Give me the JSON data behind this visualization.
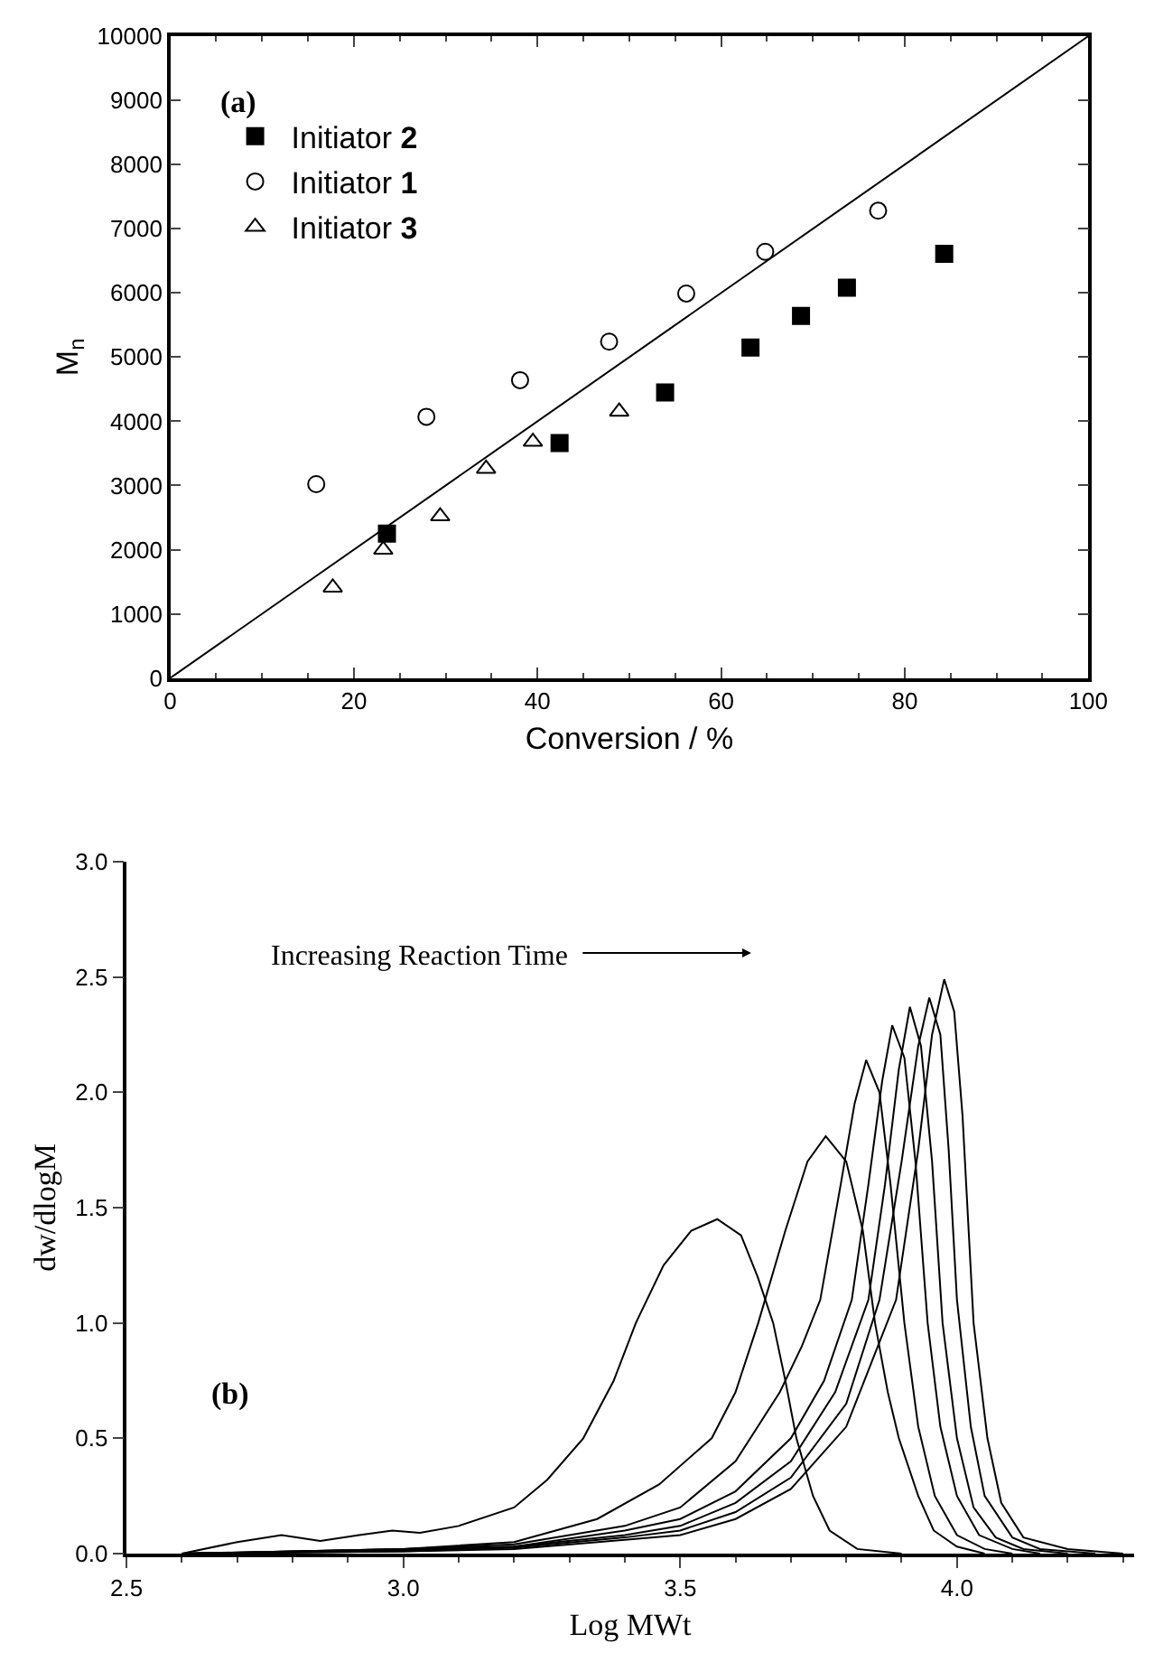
{
  "chart_data": [
    {
      "type": "scatter",
      "annotations": [
        "(a)"
      ],
      "xlabel": "Conversion / %",
      "ylabel": "M$_{n}$",
      "xlim": [
        0,
        100
      ],
      "xticks": [
        0,
        20,
        40,
        60,
        80,
        100
      ],
      "ylim": [
        0,
        10000
      ],
      "yticks": [
        0,
        1000,
        2000,
        3000,
        4000,
        5000,
        6000,
        7000,
        8000,
        9000,
        10000
      ],
      "legend": "top left",
      "series": [
        {
          "name": "Initiator 2",
          "color": "#000000",
          "marker": "square",
          "x": [
            23.6,
            42.4,
            53.9,
            63.2,
            68.7,
            73.7,
            84.3
          ],
          "values": [
            2250,
            3660,
            4450,
            5150,
            5640,
            6080,
            6610
          ]
        },
        {
          "name": "Initiator 1",
          "color": "#000000",
          "marker": "circle",
          "x": [
            15.9,
            27.9,
            38.1,
            47.8,
            56.2,
            64.8,
            77.1
          ],
          "values": [
            3020,
            4070,
            4640,
            5240,
            5990,
            6640,
            7280
          ]
        },
        {
          "name": "Initiator 3",
          "color": "#000000",
          "marker": "triangle",
          "x": [
            17.7,
            23.2,
            29.4,
            34.4,
            39.5,
            48.9
          ],
          "values": [
            1410,
            2000,
            2520,
            3260,
            3680,
            4150
          ]
        },
        {
          "type": "line",
          "color": "#000000",
          "marker": "none",
          "x": [
            0,
            100
          ],
          "values": [
            0,
            10000
          ]
        }
      ]
    },
    {
      "type": "line",
      "annotations": [
        "(b)",
        "Increasing Reaction Time"
      ],
      "xlabel": "Log MWt",
      "ylabel": "dw/dlogM",
      "xlim": [
        2.5,
        4.32
      ],
      "xticks": [
        2.5,
        {
          "value": 3,
          "label": "3.0"
        },
        3.5,
        {
          "value": 4,
          "label": "4.0"
        }
      ],
      "ylim": [
        0,
        3
      ],
      "yticks": [
        {
          "value": 0,
          "label": "0.0"
        },
        0.5,
        {
          "value": 1,
          "label": "1.0"
        },
        1.5,
        {
          "value": 2,
          "label": "2.0"
        },
        2.5,
        {
          "value": 3,
          "label": "3.0"
        }
      ],
      "marker": "none",
      "line_style": "solid",
      "series": [
        {
          "color": "#000000",
          "x": [
            2.6,
            2.7,
            2.78,
            2.85,
            2.92,
            2.98,
            3.03,
            3.1,
            3.2,
            3.26,
            3.325,
            3.38,
            3.42,
            3.47,
            3.52,
            3.567,
            3.61,
            3.64,
            3.668,
            3.69,
            3.71,
            3.74,
            3.77,
            3.82,
            3.9
          ],
          "values": [
            0,
            0.05,
            0.08,
            0.055,
            0.08,
            0.1,
            0.09,
            0.12,
            0.2,
            0.32,
            0.5,
            0.75,
            1.0,
            1.25,
            1.4,
            1.45,
            1.38,
            1.2,
            1.0,
            0.75,
            0.5,
            0.25,
            0.1,
            0.02,
            0
          ]
        },
        {
          "color": "#000000",
          "x": [
            2.6,
            2.8,
            3.0,
            3.2,
            3.35,
            3.462,
            3.557,
            3.6,
            3.641,
            3.69,
            3.73,
            3.763,
            3.8,
            3.83,
            3.852,
            3.875,
            3.895,
            3.93,
            3.958,
            4.0,
            4.05
          ],
          "values": [
            0,
            0.01,
            0.02,
            0.05,
            0.15,
            0.3,
            0.5,
            0.7,
            1.0,
            1.4,
            1.7,
            1.81,
            1.7,
            1.4,
            1.0,
            0.7,
            0.5,
            0.25,
            0.1,
            0.03,
            0
          ]
        },
        {
          "color": "#000000",
          "x": [
            2.6,
            3.0,
            3.2,
            3.4,
            3.5,
            3.6,
            3.68,
            3.72,
            3.753,
            3.79,
            3.815,
            3.836,
            3.86,
            3.88,
            3.905,
            3.93,
            3.96,
            4.0,
            4.05,
            4.1
          ],
          "values": [
            0,
            0.02,
            0.04,
            0.12,
            0.2,
            0.4,
            0.7,
            0.9,
            1.1,
            1.6,
            1.95,
            2.14,
            2.0,
            1.6,
            1.0,
            0.55,
            0.25,
            0.08,
            0.02,
            0
          ]
        },
        {
          "color": "#000000",
          "x": [
            2.6,
            3.0,
            3.2,
            3.4,
            3.5,
            3.6,
            3.7,
            3.76,
            3.81,
            3.84,
            3.865,
            3.883,
            3.905,
            3.925,
            3.947,
            3.97,
            4.0,
            4.04,
            4.1,
            4.15
          ],
          "values": [
            0,
            0.02,
            0.03,
            0.1,
            0.15,
            0.27,
            0.5,
            0.75,
            1.1,
            1.6,
            2.05,
            2.29,
            2.15,
            1.7,
            1.0,
            0.55,
            0.25,
            0.08,
            0.02,
            0
          ]
        },
        {
          "color": "#000000",
          "x": [
            2.6,
            3.0,
            3.2,
            3.4,
            3.5,
            3.6,
            3.7,
            3.78,
            3.84,
            3.87,
            3.895,
            3.915,
            3.935,
            3.955,
            3.974,
            4.0,
            4.03,
            4.07,
            4.12,
            4.2
          ],
          "values": [
            0,
            0.015,
            0.03,
            0.08,
            0.12,
            0.22,
            0.4,
            0.7,
            1.1,
            1.6,
            2.1,
            2.37,
            2.2,
            1.7,
            1.0,
            0.5,
            0.2,
            0.07,
            0.02,
            0
          ]
        },
        {
          "color": "#000000",
          "x": [
            2.6,
            3.0,
            3.2,
            3.4,
            3.5,
            3.6,
            3.7,
            3.8,
            3.86,
            3.9,
            3.93,
            3.95,
            3.97,
            3.985,
            4.0,
            4.025,
            4.05,
            4.1,
            4.15,
            4.25
          ],
          "values": [
            0,
            0.01,
            0.025,
            0.07,
            0.1,
            0.18,
            0.33,
            0.65,
            1.1,
            1.7,
            2.2,
            2.41,
            2.25,
            1.75,
            1.1,
            0.55,
            0.25,
            0.07,
            0.02,
            0
          ]
        },
        {
          "color": "#000000",
          "x": [
            2.6,
            3.0,
            3.2,
            3.4,
            3.5,
            3.6,
            3.7,
            3.8,
            3.89,
            3.93,
            3.955,
            3.977,
            3.995,
            4.01,
            4.03,
            4.055,
            4.08,
            4.12,
            4.2,
            4.3
          ],
          "values": [
            0,
            0.01,
            0.02,
            0.06,
            0.08,
            0.15,
            0.28,
            0.55,
            1.1,
            1.75,
            2.25,
            2.49,
            2.35,
            1.9,
            1.0,
            0.5,
            0.22,
            0.07,
            0.02,
            0
          ]
        }
      ]
    }
  ]
}
